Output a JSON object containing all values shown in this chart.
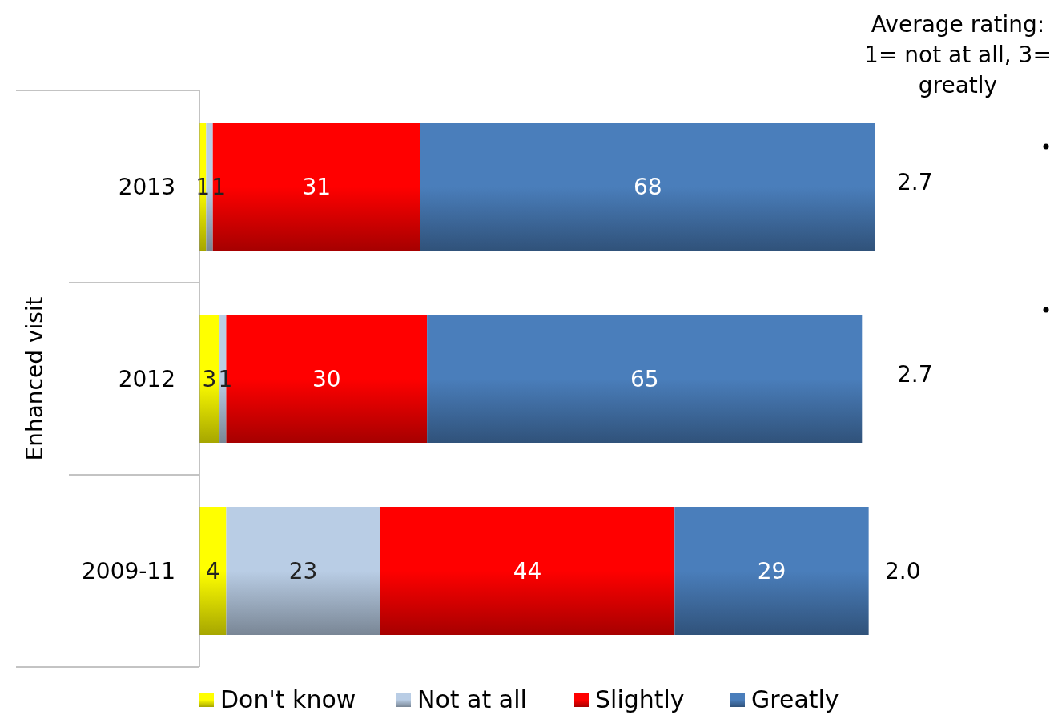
{
  "chart_data": {
    "type": "bar",
    "orientation": "horizontal",
    "stacked": true,
    "data_labels": true,
    "legend": "bottom",
    "ylabel": "Enhanced visit",
    "categories": [
      "2013",
      "2012",
      "2009-11"
    ],
    "series": [
      {
        "name": "Don't know",
        "color": "#ffff00",
        "values": [
          1,
          3,
          4
        ]
      },
      {
        "name": "Not at all",
        "color": "#b9cde5",
        "values": [
          1,
          1,
          23
        ]
      },
      {
        "name": "Slightly",
        "color": "#ff0000",
        "values": [
          31,
          30,
          44
        ]
      },
      {
        "name": "Greatly",
        "color": "#4a7ebb",
        "values": [
          68,
          65,
          29
        ]
      }
    ],
    "annotations": [
      "Average rating: 1= not at all, 3= greatly",
      "2.7",
      "2.7",
      "2.0"
    ]
  }
}
